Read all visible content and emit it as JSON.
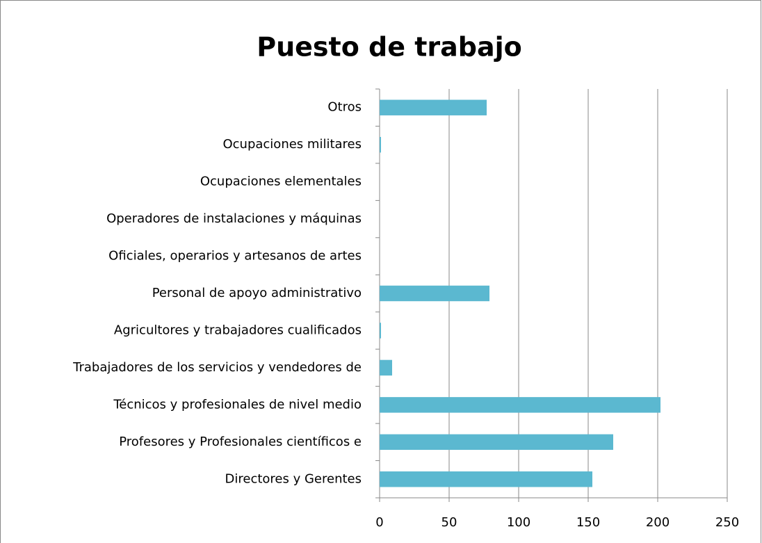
{
  "chart_data": {
    "type": "bar",
    "orientation": "horizontal",
    "title": "Puesto de trabajo",
    "categories": [
      "Directores y Gerentes",
      "Profesores y Profesionales científicos e",
      "Técnicos y profesionales de nivel medio",
      "Trabajadores de los servicios y vendedores de",
      "Agricultores y trabajadores cualificados",
      "Personal de apoyo administrativo",
      "Oficiales, operarios y artesanos de artes",
      "Operadores de instalaciones y máquinas",
      "Ocupaciones elementales",
      "Ocupaciones militares",
      "Otros"
    ],
    "values": [
      153,
      168,
      202,
      9,
      1,
      79,
      0,
      0,
      0,
      1,
      77
    ],
    "color": "#5bb8d0",
    "xlim": [
      0,
      250
    ],
    "xticks": [
      0,
      50,
      100,
      150,
      200,
      250
    ],
    "grid": true
  }
}
